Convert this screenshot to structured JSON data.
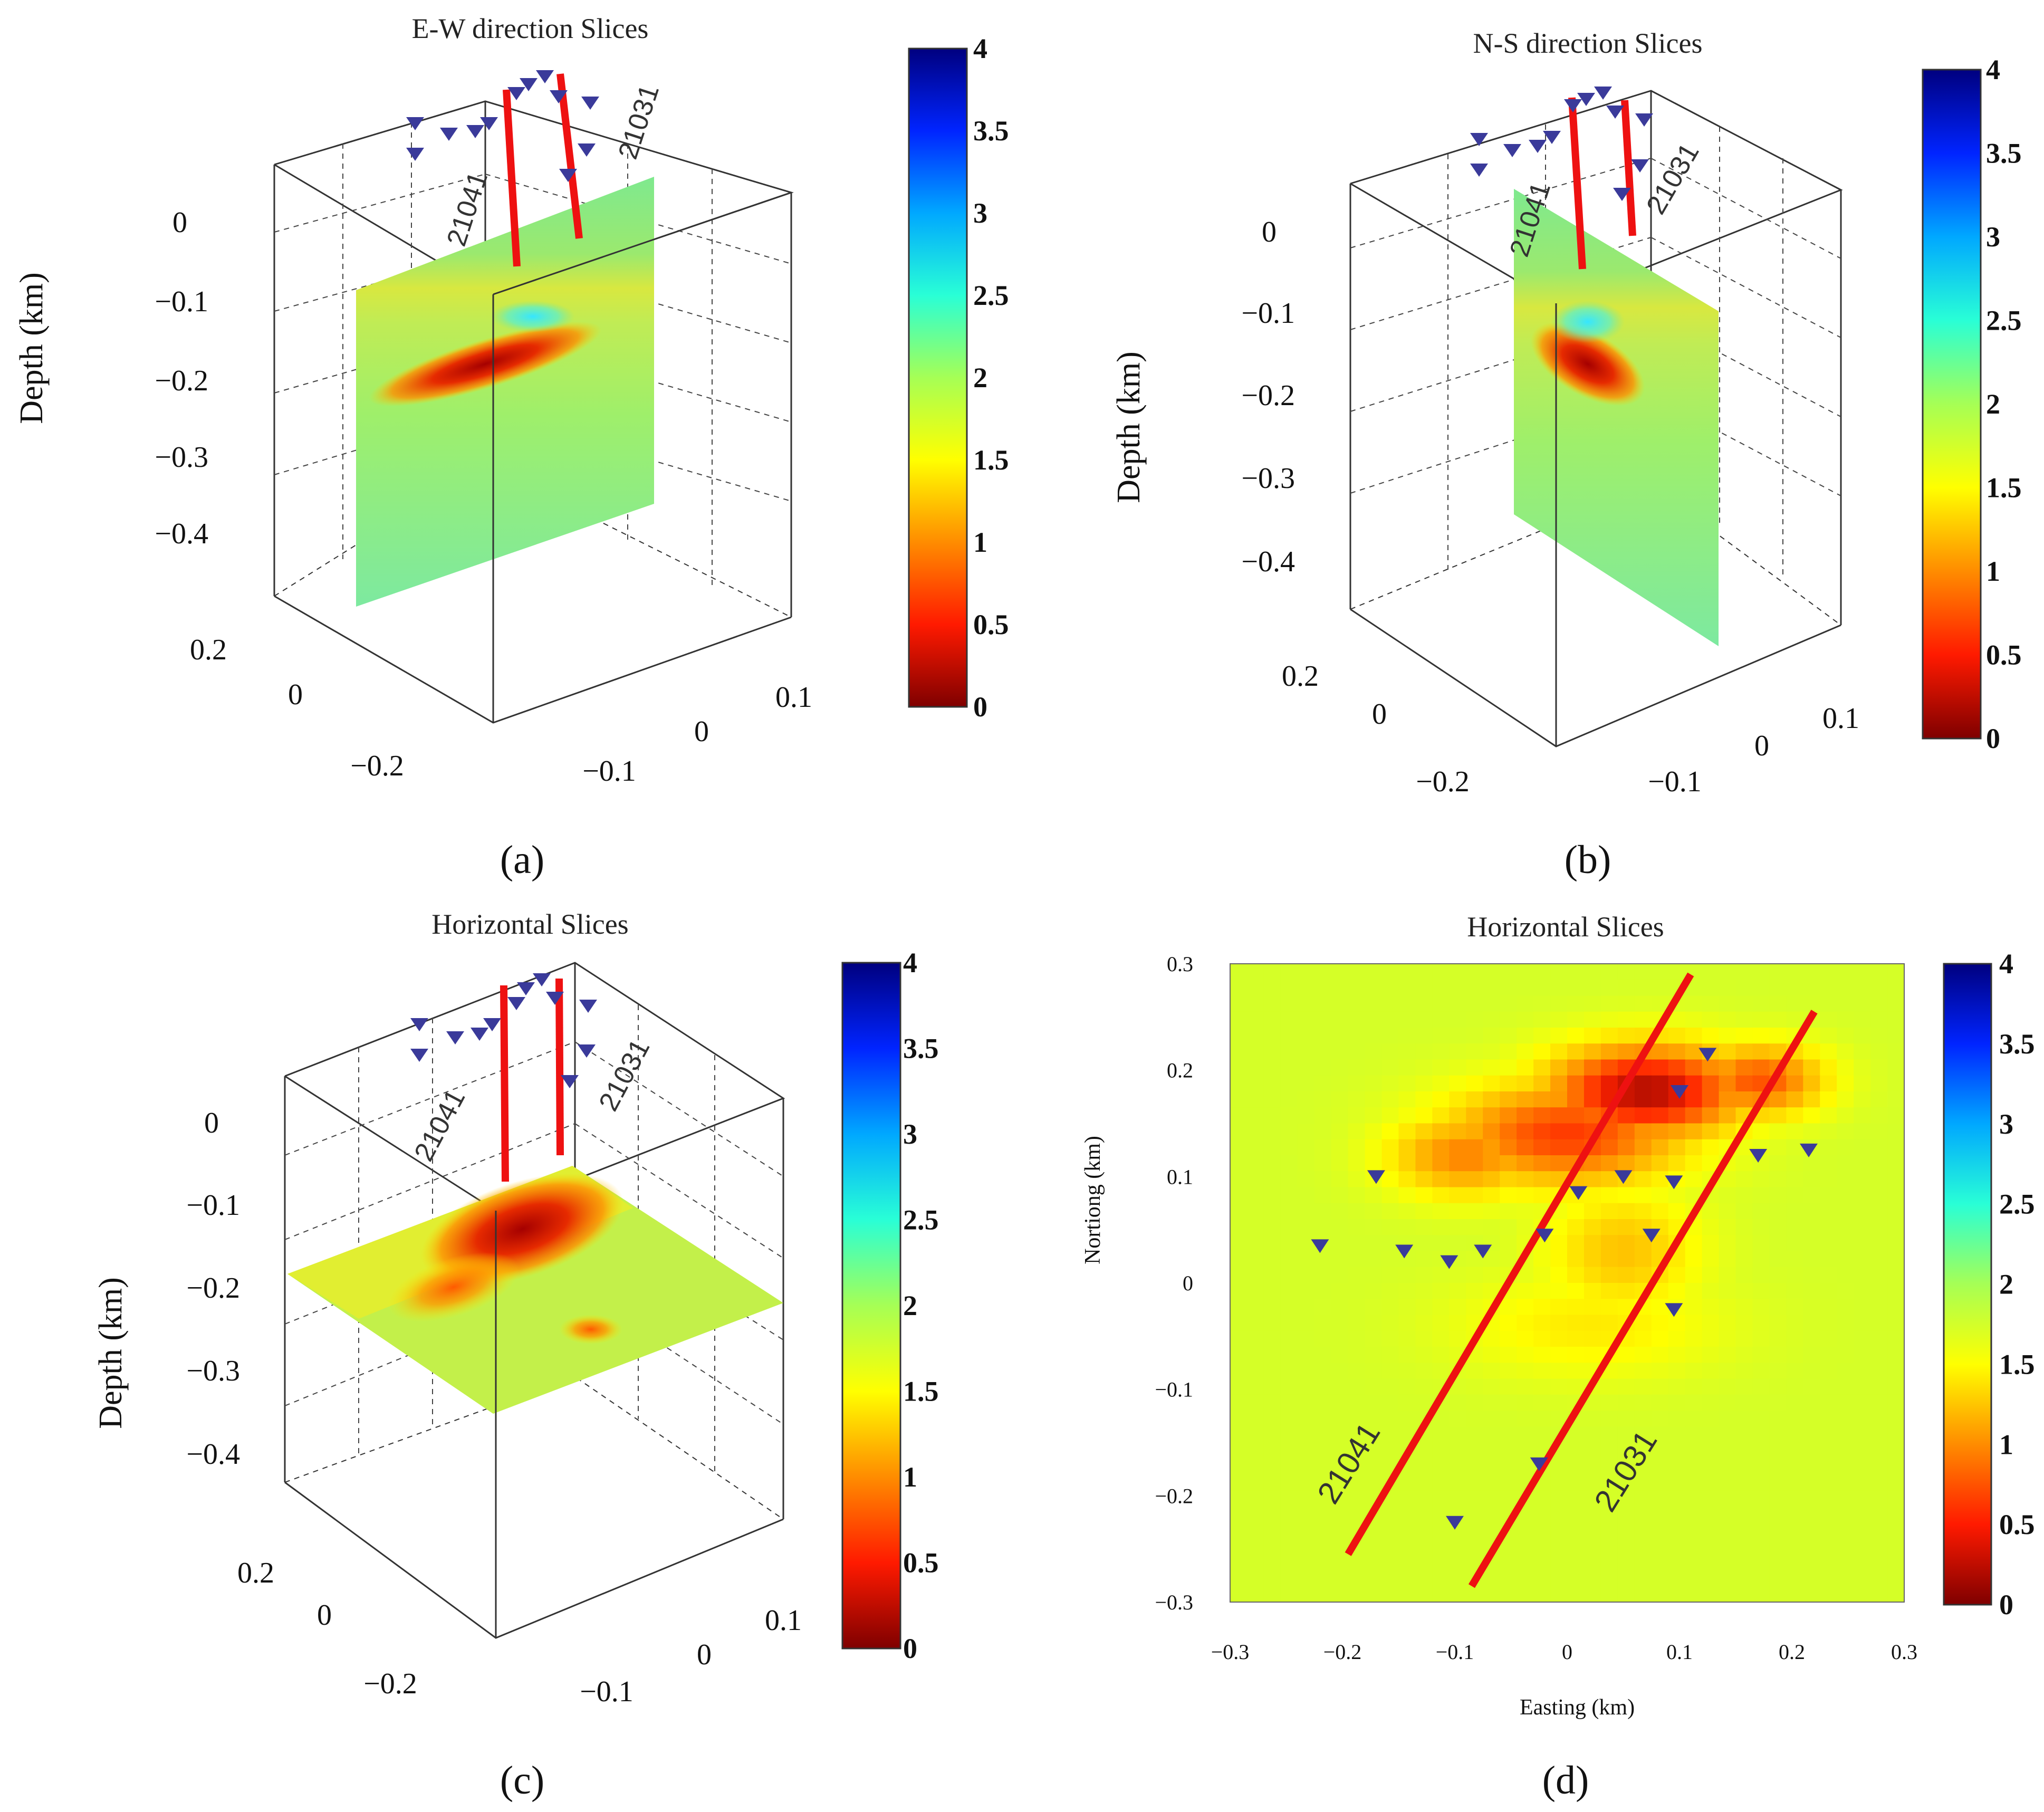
{
  "colorbar": {
    "min": 0,
    "max": 4,
    "tick_labels": [
      "0",
      "0.5",
      "1",
      "1.5",
      "2",
      "2.5",
      "3",
      "3.5",
      "4"
    ],
    "stops": [
      "#7f0000",
      "#ff2200",
      "#ff9a00",
      "#ffff00",
      "#aaff4f",
      "#2fffd0",
      "#00aaff",
      "#0022ff",
      "#00007f"
    ]
  },
  "line_labels": {
    "left": "21041",
    "right": "21031"
  },
  "colors": {
    "mining_line": "#ee1111",
    "station": "#3a3a9a",
    "frame": "#333333"
  },
  "panels": {
    "a": {
      "title": "E-W direction Slices",
      "label": "(a)",
      "ylabel": "Depth (km)",
      "depth_ticks": [
        "0",
        "−0.1",
        "−0.2",
        "−0.3",
        "−0.4"
      ],
      "ytick_labels": [
        "0.2",
        "0"
      ],
      "xtick_labels": [
        "−0.2",
        "−0.1",
        "0",
        "0.1"
      ]
    },
    "b": {
      "title": "N-S direction Slices",
      "label": "(b)",
      "ylabel": "Depth (km)",
      "depth_ticks": [
        "0",
        "−0.1",
        "−0.2",
        "−0.3",
        "−0.4"
      ],
      "ytick_labels": [
        "0.2",
        "0"
      ],
      "xtick_labels": [
        "−0.2",
        "−0.1",
        "0",
        "0.1"
      ]
    },
    "c": {
      "title": "Horizontal Slices",
      "label": "(c)",
      "ylabel": "Depth (km)",
      "depth_ticks": [
        "0",
        "−0.1",
        "−0.2",
        "−0.3",
        "−0.4"
      ],
      "ytick_labels": [
        "0.2",
        "0"
      ],
      "xtick_labels": [
        "−0.2",
        "−0.1",
        "0",
        "0.1"
      ]
    },
    "d": {
      "title": "Horizontal Slices",
      "label": "(d)",
      "xlabel": "Easting (km)",
      "ylabel": "Nortiong (km)",
      "xtick_labels": [
        "−0.3",
        "−0.2",
        "−0.1",
        "0",
        "0.1",
        "0.2",
        "0.3"
      ],
      "ytick_labels": [
        "0.3",
        "0.2",
        "0.1",
        "0",
        "−0.1",
        "−0.2",
        "−0.3"
      ]
    }
  },
  "chart_data": {
    "type": "heatmap",
    "title": "Horizontal Slices",
    "xlabel": "Easting (km)",
    "ylabel": "Nortiong (km)",
    "xlim": [
      -0.3,
      0.3
    ],
    "ylim": [
      -0.3,
      0.3
    ],
    "value_range": [
      0,
      4
    ],
    "stations": [
      {
        "x": -0.22,
        "y": 0.035
      },
      {
        "x": -0.17,
        "y": 0.1
      },
      {
        "x": -0.145,
        "y": 0.03
      },
      {
        "x": -0.105,
        "y": 0.02
      },
      {
        "x": -0.075,
        "y": 0.03
      },
      {
        "x": -0.02,
        "y": 0.045
      },
      {
        "x": 0.01,
        "y": 0.085
      },
      {
        "x": 0.05,
        "y": 0.1
      },
      {
        "x": 0.075,
        "y": 0.045
      },
      {
        "x": 0.095,
        "y": 0.095
      },
      {
        "x": 0.1,
        "y": 0.18
      },
      {
        "x": 0.125,
        "y": 0.215
      },
      {
        "x": 0.17,
        "y": 0.12
      },
      {
        "x": 0.215,
        "y": 0.125
      },
      {
        "x": 0.095,
        "y": -0.025
      },
      {
        "x": -0.025,
        "y": -0.17
      },
      {
        "x": -0.1,
        "y": -0.225
      }
    ],
    "lines": [
      {
        "name": "21041",
        "x": [
          -0.195,
          0.11
        ],
        "y": [
          -0.255,
          0.29
        ]
      },
      {
        "name": "21031",
        "x": [
          -0.085,
          0.22
        ],
        "y": [
          -0.285,
          0.255
        ]
      }
    ],
    "anomalies": [
      {
        "x": 0.07,
        "y": 0.18,
        "value": 0.2,
        "sx": 0.09,
        "sy": 0.045
      },
      {
        "x": 0.0,
        "y": 0.14,
        "value": 0.6,
        "sx": 0.11,
        "sy": 0.05
      },
      {
        "x": 0.17,
        "y": 0.19,
        "value": 0.7,
        "sx": 0.06,
        "sy": 0.035
      },
      {
        "x": -0.09,
        "y": 0.12,
        "value": 0.9,
        "sx": 0.07,
        "sy": 0.04
      },
      {
        "x": 0.05,
        "y": 0.03,
        "value": 1.2,
        "sx": 0.07,
        "sy": 0.06
      },
      {
        "x": 0.02,
        "y": -0.04,
        "value": 1.4,
        "sx": 0.12,
        "sy": 0.05
      }
    ],
    "background_value": 1.75
  }
}
